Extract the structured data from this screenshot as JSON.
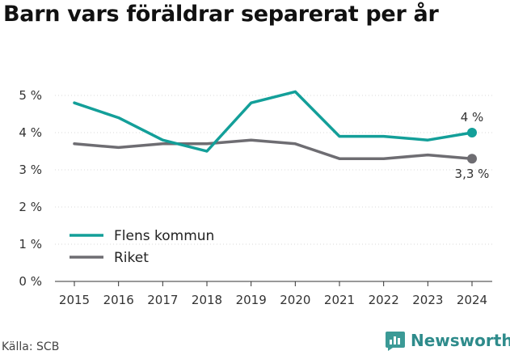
{
  "title": "Barn vars föräldrar separerat per år",
  "source": "Källa: SCB",
  "brand": {
    "name": "Newsworthy"
  },
  "colors": {
    "accent": "#139f99",
    "secondary": "#6e6d72",
    "brand": "#2e8b8b"
  },
  "chart_data": {
    "type": "line",
    "title": "Barn vars föräldrar separerat per år",
    "x": [
      "2015",
      "2016",
      "2017",
      "2018",
      "2019",
      "2020",
      "2021",
      "2022",
      "2023",
      "2024"
    ],
    "ylim": [
      0,
      5
    ],
    "yticks": [
      "0 %",
      "1 %",
      "2 %",
      "3 %",
      "4 %",
      "5 %"
    ],
    "grid": true,
    "legend": "bottom-left",
    "series": [
      {
        "name": "Flens kommun",
        "color": "#139f99",
        "values": [
          4.8,
          4.4,
          3.8,
          3.5,
          4.8,
          5.1,
          3.9,
          3.9,
          3.8,
          4.0
        ],
        "end_label": "4 %"
      },
      {
        "name": "Riket",
        "color": "#6e6d72",
        "values": [
          3.7,
          3.6,
          3.7,
          3.7,
          3.8,
          3.7,
          3.3,
          3.3,
          3.4,
          3.3
        ],
        "end_label": "3,3 %"
      }
    ]
  }
}
